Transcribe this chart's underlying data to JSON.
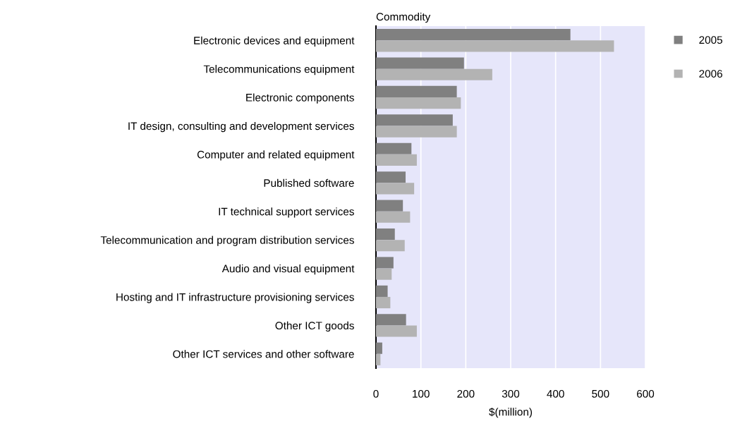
{
  "chart_data": {
    "type": "bar",
    "orientation": "horizontal",
    "ylabel": "Commodity",
    "xlabel": "$(million)",
    "categories": [
      "Electronic devices and equipment",
      "Telecommunications equipment",
      "Electronic components",
      "IT design, consulting and development services",
      "Computer and related equipment",
      "Published software",
      "IT technical support services",
      "Telecommunication and program distribution services",
      "Audio and visual equipment",
      "Hosting and IT infrastructure provisioning services",
      "Other ICT goods",
      "Other ICT services and other software"
    ],
    "series": [
      {
        "name": "2005",
        "color": "#808080",
        "values": [
          433,
          196,
          180,
          171,
          79,
          66,
          60,
          42,
          39,
          26,
          67,
          14
        ]
      },
      {
        "name": "2006",
        "color": "#b3b3b3",
        "values": [
          530,
          259,
          189,
          180,
          91,
          85,
          76,
          64,
          35,
          32,
          91,
          10
        ]
      }
    ],
    "xlim": [
      0,
      600
    ],
    "xticks": [
      0,
      100,
      200,
      300,
      400,
      500,
      600
    ],
    "grid": "x",
    "legend": "top right"
  }
}
